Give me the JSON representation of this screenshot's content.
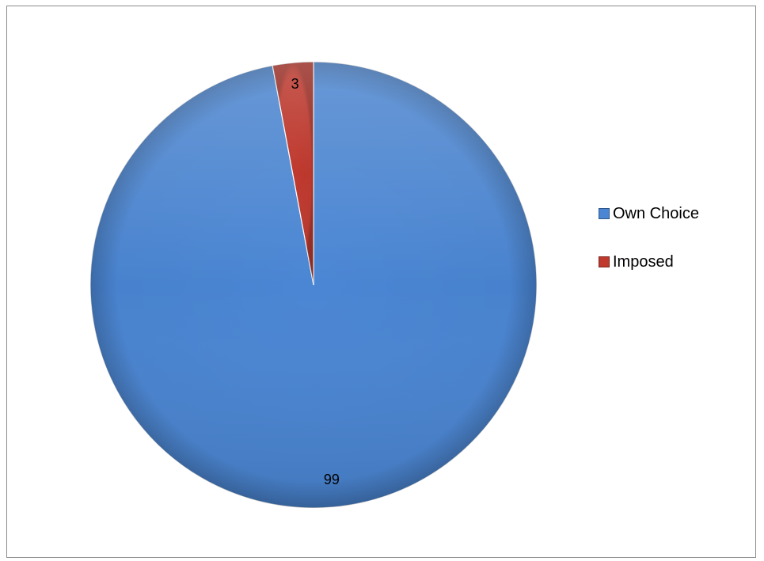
{
  "chart_data": {
    "type": "pie",
    "title": "",
    "categories": [
      "Own Choice",
      "Imposed"
    ],
    "values": [
      99,
      3
    ],
    "colors": [
      "#4A86D4",
      "#C0392E"
    ],
    "data_labels": [
      "99",
      "3"
    ],
    "legend_placement": "right",
    "start_angle_deg": 0,
    "direction": "clockwise"
  },
  "legend": {
    "items": [
      {
        "label": "Own Choice",
        "color": "#4A86D4"
      },
      {
        "label": "Imposed",
        "color": "#C0392E"
      }
    ]
  }
}
